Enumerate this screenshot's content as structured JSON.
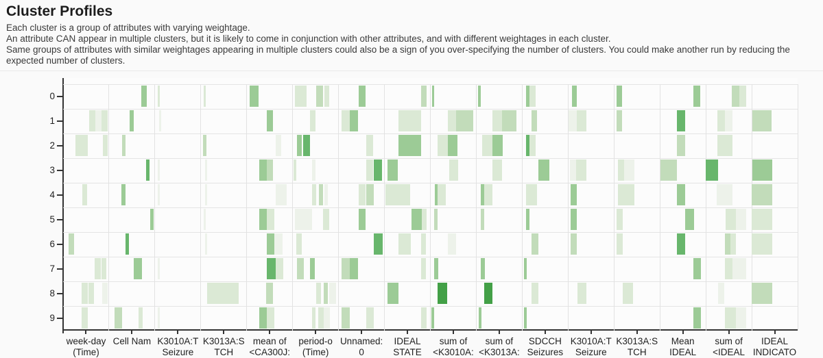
{
  "header": {
    "title": "Cluster Profiles",
    "description_lines": [
      "Each cluster is a group of attributes with varying weightage.",
      "An attribute CAN appear in multiple clusters, but it is likely to come in conjunction with other attributes, and with different weightages in each cluster.",
      "Same groups of attributes with similar weightages appearing in multiple clusters could also be a sign of you over-specifying the number of clusters. You could make another run by reducing the expected number of clusters."
    ]
  },
  "chart_data": {
    "type": "heatmap",
    "rows": [
      "0",
      "1",
      "2",
      "3",
      "4",
      "5",
      "6",
      "7",
      "8",
      "9"
    ],
    "columns": [
      [
        "week-day",
        "(Time)"
      ],
      [
        "Cell Nam"
      ],
      [
        "K3010A:T",
        "Seizure"
      ],
      [
        "K3013A:S",
        "TCH"
      ],
      [
        "mean of",
        "<CA300J:"
      ],
      [
        "period-o",
        "(Time)"
      ],
      [
        "Unnamed:",
        "0"
      ],
      [
        "IDEAL",
        "STATE"
      ],
      [
        "sum of",
        "<K3010A:"
      ],
      [
        "sum of",
        "<K3013A:"
      ],
      [
        "SDCCH",
        "Seizures"
      ],
      [
        "K3010A:T",
        "Seizure"
      ],
      [
        "K3013A:S",
        "TCH"
      ],
      [
        "Mean",
        "IDEAL"
      ],
      [
        "sum of",
        "<IDEAL"
      ],
      [
        "IDEAL",
        "INDICATO"
      ]
    ],
    "palette": [
      "#edf2ea",
      "#dbe9d5",
      "#c2dcba",
      "#9ccb96",
      "#68b66c",
      "#43a047"
    ],
    "grid": true,
    "stripe_format": [
      "row",
      "col",
      "start_frac",
      "end_frac",
      "shade_index"
    ],
    "stripes": [
      [
        0,
        1,
        0.7,
        0.82,
        3
      ],
      [
        0,
        2,
        0.06,
        0.11,
        1
      ],
      [
        0,
        3,
        0.06,
        0.11,
        1
      ],
      [
        0,
        4,
        0.06,
        0.26,
        3
      ],
      [
        0,
        5,
        0.05,
        0.3,
        1
      ],
      [
        0,
        5,
        0.51,
        0.66,
        2
      ],
      [
        0,
        5,
        0.69,
        0.8,
        1
      ],
      [
        0,
        6,
        0.44,
        0.59,
        3
      ],
      [
        0,
        7,
        0.8,
        0.92,
        2
      ],
      [
        0,
        8,
        0.04,
        0.08,
        3
      ],
      [
        0,
        9,
        0.04,
        0.1,
        3
      ],
      [
        0,
        10,
        0.08,
        0.16,
        3
      ],
      [
        0,
        10,
        0.16,
        0.3,
        1
      ],
      [
        0,
        11,
        0.08,
        0.19,
        3
      ],
      [
        0,
        12,
        0.06,
        0.18,
        3
      ],
      [
        0,
        13,
        0.73,
        0.88,
        3
      ],
      [
        0,
        14,
        0.56,
        0.73,
        2
      ],
      [
        0,
        14,
        0.73,
        0.88,
        1
      ],
      [
        1,
        0,
        0.57,
        0.7,
        1
      ],
      [
        1,
        0,
        0.7,
        0.84,
        0
      ],
      [
        1,
        0,
        0.84,
        0.97,
        1
      ],
      [
        1,
        1,
        0.45,
        0.54,
        3
      ],
      [
        1,
        2,
        0.09,
        0.13,
        0
      ],
      [
        1,
        4,
        0.44,
        0.57,
        3
      ],
      [
        1,
        5,
        0.38,
        0.5,
        1
      ],
      [
        1,
        6,
        0.07,
        0.25,
        1
      ],
      [
        1,
        6,
        0.25,
        0.42,
        3
      ],
      [
        1,
        7,
        0.3,
        0.8,
        1
      ],
      [
        1,
        8,
        0.38,
        0.56,
        1
      ],
      [
        1,
        8,
        0.56,
        0.93,
        2
      ],
      [
        1,
        9,
        0.35,
        0.56,
        1
      ],
      [
        1,
        9,
        0.56,
        0.87,
        2
      ],
      [
        1,
        10,
        0.21,
        0.33,
        2
      ],
      [
        1,
        11,
        0.01,
        0.19,
        0
      ],
      [
        1,
        11,
        0.19,
        0.4,
        1
      ],
      [
        1,
        12,
        0.05,
        0.17,
        2
      ],
      [
        1,
        13,
        0.37,
        0.55,
        4
      ],
      [
        1,
        14,
        0.25,
        0.42,
        1
      ],
      [
        1,
        14,
        0.42,
        0.58,
        0
      ],
      [
        1,
        15,
        0.01,
        0.43,
        2
      ],
      [
        2,
        0,
        0.27,
        0.54,
        1
      ],
      [
        2,
        0,
        0.87,
        0.97,
        1
      ],
      [
        2,
        1,
        0.29,
        0.36,
        2
      ],
      [
        2,
        3,
        0.05,
        0.12,
        2
      ],
      [
        2,
        4,
        0.63,
        0.75,
        0
      ],
      [
        2,
        5,
        0.09,
        0.2,
        3
      ],
      [
        2,
        5,
        0.23,
        0.38,
        4
      ],
      [
        2,
        6,
        0.6,
        0.75,
        1
      ],
      [
        2,
        7,
        0.3,
        0.8,
        3
      ],
      [
        2,
        8,
        0.16,
        0.38,
        1
      ],
      [
        2,
        8,
        0.38,
        0.59,
        3
      ],
      [
        2,
        9,
        0.13,
        0.35,
        1
      ],
      [
        2,
        9,
        0.35,
        0.58,
        3
      ],
      [
        2,
        10,
        0.08,
        0.16,
        4
      ],
      [
        2,
        10,
        0.16,
        0.3,
        1
      ],
      [
        2,
        13,
        0.37,
        0.55,
        2
      ],
      [
        2,
        14,
        0.25,
        0.58,
        1
      ],
      [
        3,
        1,
        0.81,
        0.88,
        4
      ],
      [
        3,
        2,
        0.06,
        0.1,
        0
      ],
      [
        3,
        3,
        0.09,
        0.13,
        0
      ],
      [
        3,
        4,
        0.27,
        0.44,
        3
      ],
      [
        3,
        4,
        0.44,
        0.57,
        2
      ],
      [
        3,
        5,
        0.02,
        0.08,
        1
      ],
      [
        3,
        5,
        0.42,
        0.5,
        0
      ],
      [
        3,
        6,
        0.6,
        0.76,
        1
      ],
      [
        3,
        6,
        0.77,
        0.95,
        4
      ],
      [
        3,
        7,
        0.07,
        0.29,
        3
      ],
      [
        3,
        8,
        0.41,
        0.61,
        1
      ],
      [
        3,
        9,
        0.35,
        0.56,
        1
      ],
      [
        3,
        10,
        0.35,
        0.59,
        3
      ],
      [
        3,
        11,
        0.04,
        0.17,
        0
      ],
      [
        3,
        11,
        0.17,
        0.4,
        1
      ],
      [
        3,
        12,
        0.08,
        0.22,
        1
      ],
      [
        3,
        12,
        0.22,
        0.44,
        0
      ],
      [
        3,
        13,
        0.01,
        0.37,
        2
      ],
      [
        3,
        14,
        0.0,
        0.27,
        4
      ],
      [
        3,
        15,
        0.01,
        0.45,
        3
      ],
      [
        4,
        0,
        0.42,
        0.52,
        1
      ],
      [
        4,
        1,
        0.27,
        0.36,
        3
      ],
      [
        4,
        2,
        0.06,
        0.1,
        0
      ],
      [
        4,
        3,
        0.09,
        0.13,
        0
      ],
      [
        4,
        4,
        0.63,
        0.87,
        0
      ],
      [
        4,
        5,
        0.42,
        0.51,
        1
      ],
      [
        4,
        5,
        0.57,
        0.66,
        2
      ],
      [
        4,
        5,
        0.69,
        0.77,
        0
      ],
      [
        4,
        6,
        0.44,
        0.59,
        1
      ],
      [
        4,
        6,
        0.6,
        0.77,
        2
      ],
      [
        4,
        7,
        0.02,
        0.56,
        1
      ],
      [
        4,
        8,
        0.1,
        0.16,
        3
      ],
      [
        4,
        8,
        0.16,
        0.34,
        1
      ],
      [
        4,
        9,
        0.1,
        0.17,
        3
      ],
      [
        4,
        9,
        0.17,
        0.35,
        1
      ],
      [
        4,
        10,
        0.08,
        0.32,
        1
      ],
      [
        4,
        11,
        0.05,
        0.19,
        3
      ],
      [
        4,
        12,
        0.08,
        0.44,
        1
      ],
      [
        4,
        13,
        0.37,
        0.55,
        3
      ],
      [
        4,
        14,
        0.24,
        0.58,
        0
      ],
      [
        4,
        15,
        0.0,
        0.45,
        2
      ],
      [
        5,
        1,
        0.9,
        0.97,
        3
      ],
      [
        5,
        3,
        0.06,
        0.11,
        0
      ],
      [
        5,
        4,
        0.27,
        0.44,
        3
      ],
      [
        5,
        4,
        0.44,
        0.6,
        1
      ],
      [
        5,
        5,
        0.05,
        0.42,
        0
      ],
      [
        5,
        5,
        0.66,
        0.8,
        1
      ],
      [
        5,
        6,
        0.44,
        0.59,
        3
      ],
      [
        5,
        7,
        0.59,
        0.81,
        3
      ],
      [
        5,
        7,
        0.81,
        0.92,
        1
      ],
      [
        5,
        8,
        0.08,
        0.16,
        2
      ],
      [
        5,
        9,
        0.1,
        0.17,
        2
      ],
      [
        5,
        10,
        0.08,
        0.16,
        3
      ],
      [
        5,
        11,
        0.05,
        0.19,
        3
      ],
      [
        5,
        12,
        0.05,
        0.19,
        1
      ],
      [
        5,
        13,
        0.55,
        0.74,
        3
      ],
      [
        5,
        14,
        0.43,
        0.65,
        1
      ],
      [
        5,
        14,
        0.65,
        0.88,
        0
      ],
      [
        5,
        15,
        0.0,
        0.45,
        1
      ],
      [
        6,
        0,
        0.12,
        0.24,
        2
      ],
      [
        6,
        1,
        0.36,
        0.44,
        4
      ],
      [
        6,
        3,
        0.09,
        0.13,
        0
      ],
      [
        6,
        4,
        0.44,
        0.6,
        3
      ],
      [
        6,
        4,
        0.6,
        0.78,
        0
      ],
      [
        6,
        5,
        0.08,
        0.2,
        1
      ],
      [
        6,
        6,
        0.77,
        0.96,
        4
      ],
      [
        6,
        7,
        0.3,
        0.57,
        1
      ],
      [
        6,
        7,
        0.8,
        0.9,
        1
      ],
      [
        6,
        8,
        0.38,
        0.56,
        0
      ],
      [
        6,
        10,
        0.21,
        0.35,
        2
      ],
      [
        6,
        11,
        0.05,
        0.19,
        2
      ],
      [
        6,
        12,
        0.05,
        0.19,
        1
      ],
      [
        6,
        13,
        0.37,
        0.55,
        4
      ],
      [
        6,
        14,
        0.42,
        0.54,
        2
      ],
      [
        6,
        14,
        0.54,
        0.65,
        1
      ],
      [
        6,
        15,
        0.0,
        0.45,
        1
      ],
      [
        7,
        0,
        0.69,
        0.82,
        1
      ],
      [
        7,
        0,
        0.84,
        0.94,
        1
      ],
      [
        7,
        1,
        0.54,
        0.72,
        3
      ],
      [
        7,
        2,
        0.06,
        0.1,
        0
      ],
      [
        7,
        4,
        0.44,
        0.63,
        4
      ],
      [
        7,
        4,
        0.63,
        0.79,
        1
      ],
      [
        7,
        5,
        0.09,
        0.24,
        2
      ],
      [
        7,
        5,
        0.38,
        0.49,
        3
      ],
      [
        7,
        6,
        0.07,
        0.25,
        2
      ],
      [
        7,
        6,
        0.25,
        0.42,
        3
      ],
      [
        7,
        7,
        0.8,
        0.9,
        1
      ],
      [
        7,
        8,
        0.08,
        0.17,
        3
      ],
      [
        7,
        9,
        0.1,
        0.19,
        3
      ],
      [
        7,
        10,
        0.04,
        0.1,
        3
      ],
      [
        7,
        13,
        0.73,
        0.89,
        3
      ],
      [
        7,
        14,
        0.42,
        0.58,
        1
      ],
      [
        7,
        14,
        0.58,
        0.88,
        0
      ],
      [
        8,
        0,
        0.4,
        0.54,
        1
      ],
      [
        8,
        0,
        0.56,
        0.67,
        1
      ],
      [
        8,
        0,
        0.85,
        0.97,
        0
      ],
      [
        8,
        3,
        0.14,
        0.83,
        1
      ],
      [
        8,
        4,
        0.42,
        0.57,
        2
      ],
      [
        8,
        5,
        0.51,
        0.62,
        1
      ],
      [
        8,
        5,
        0.68,
        0.77,
        2
      ],
      [
        8,
        5,
        0.8,
        0.94,
        0
      ],
      [
        8,
        7,
        0.07,
        0.3,
        3
      ],
      [
        8,
        8,
        0.16,
        0.37,
        5
      ],
      [
        8,
        9,
        0.17,
        0.35,
        5
      ],
      [
        8,
        10,
        0.2,
        0.35,
        1
      ],
      [
        8,
        11,
        0.2,
        0.4,
        1
      ],
      [
        8,
        12,
        0.19,
        0.41,
        1
      ],
      [
        8,
        14,
        0.27,
        0.4,
        0
      ],
      [
        8,
        15,
        0.0,
        0.45,
        2
      ],
      [
        9,
        0,
        0.4,
        0.54,
        1
      ],
      [
        9,
        1,
        0.12,
        0.28,
        2
      ],
      [
        9,
        1,
        0.64,
        0.73,
        1
      ],
      [
        9,
        2,
        0.06,
        0.1,
        0
      ],
      [
        9,
        4,
        0.27,
        0.44,
        3
      ],
      [
        9,
        4,
        0.44,
        0.6,
        1
      ],
      [
        9,
        5,
        0.42,
        0.5,
        1
      ],
      [
        9,
        5,
        0.56,
        0.68,
        1
      ],
      [
        9,
        5,
        0.68,
        0.81,
        0
      ],
      [
        9,
        6,
        0.07,
        0.25,
        2
      ],
      [
        9,
        6,
        0.6,
        0.77,
        1
      ],
      [
        9,
        7,
        0.8,
        0.92,
        1
      ],
      [
        9,
        8,
        0.02,
        0.08,
        3
      ],
      [
        9,
        9,
        0.05,
        0.11,
        3
      ],
      [
        9,
        10,
        0.04,
        0.1,
        3
      ],
      [
        9,
        13,
        0.73,
        0.89,
        3
      ],
      [
        9,
        14,
        0.42,
        0.65,
        1
      ],
      [
        9,
        14,
        0.65,
        0.88,
        0
      ]
    ]
  }
}
